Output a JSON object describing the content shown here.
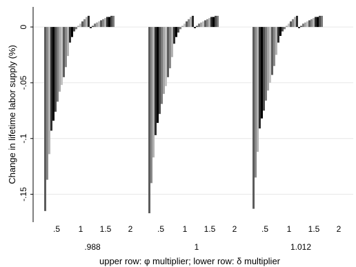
{
  "chart_data": {
    "type": "bar",
    "ylabel": "Change in lifetime labor supply (%)",
    "xlabel": "upper row: φ multiplier; lower row: δ multiplier",
    "ylim": [
      -0.175,
      0.018
    ],
    "y_ticks": [
      0,
      -0.05,
      -0.1,
      -0.15
    ],
    "y_tick_labels": [
      "0",
      "-.05",
      "-.1",
      "-.15"
    ],
    "upper_tick_values": [
      0.5,
      1,
      1.5,
      2
    ],
    "upper_tick_labels": [
      ".5",
      "1",
      "1.5",
      "2"
    ],
    "grid": true,
    "legend": "none",
    "panels": [
      {
        "label": ".988",
        "values": [
          -0.165,
          -0.137,
          -0.114,
          -0.093,
          -0.084,
          -0.076,
          -0.067,
          -0.058,
          -0.052,
          -0.045,
          -0.036,
          -0.026,
          -0.014,
          -0.009,
          -0.004,
          -0.002,
          0.001,
          0.003,
          0.005,
          0.007,
          0.009,
          0.01,
          -0.001,
          0.001,
          0.003,
          0.004,
          0.005,
          0.006,
          0.007,
          0.008,
          0.009,
          0.009,
          0.01,
          0.01
        ]
      },
      {
        "label": "1",
        "values": [
          -0.167,
          -0.14,
          -0.117,
          -0.097,
          -0.086,
          -0.078,
          -0.069,
          -0.06,
          -0.053,
          -0.045,
          -0.037,
          -0.027,
          -0.015,
          -0.009,
          -0.005,
          -0.002,
          0.001,
          0.003,
          0.005,
          0.007,
          0.009,
          0.01,
          -0.001,
          0.001,
          0.003,
          0.004,
          0.005,
          0.006,
          0.007,
          0.008,
          0.009,
          0.009,
          0.01,
          0.01
        ]
      },
      {
        "label": "1.012",
        "values": [
          -0.163,
          -0.135,
          -0.112,
          -0.091,
          -0.082,
          -0.075,
          -0.066,
          -0.057,
          -0.05,
          -0.043,
          -0.035,
          -0.025,
          -0.014,
          -0.008,
          -0.004,
          -0.002,
          0.001,
          0.003,
          0.005,
          0.007,
          0.009,
          0.01,
          -0.001,
          0.001,
          0.003,
          0.004,
          0.005,
          0.006,
          0.007,
          0.008,
          0.009,
          0.009,
          0.01,
          0.01
        ]
      }
    ],
    "bar_colors": [
      "#5c5c5c",
      "#8a8a8a",
      "#b3b3b3",
      "#2e2e2e",
      "#000000",
      "#4d4d4d",
      "#7a7a7a",
      "#a6a6a6",
      "#c2c2c2"
    ]
  }
}
